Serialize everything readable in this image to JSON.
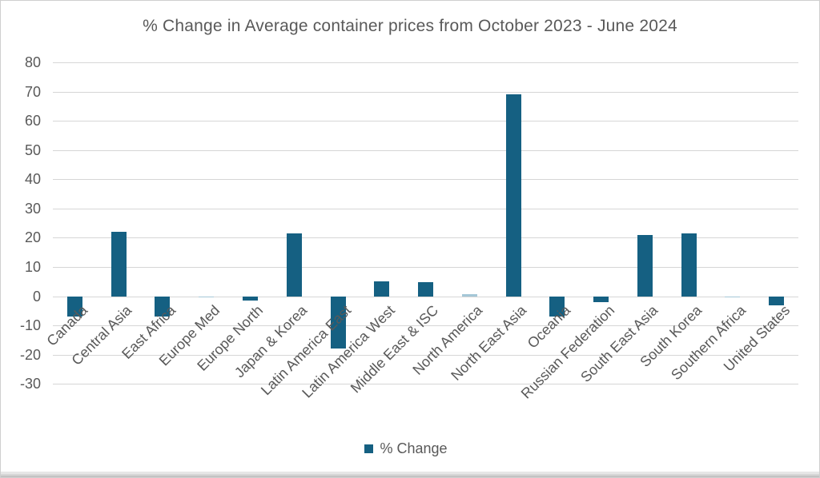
{
  "window": {
    "background": "#ffffff",
    "border_color": "#cfcfcf"
  },
  "chart_data": {
    "type": "bar",
    "title": "% Change in Average container prices from October 2023 - June 2024",
    "categories": [
      "Canada",
      "Central Asia",
      "East Africa",
      "Europe Med",
      "Europe North",
      "Japan & Korea",
      "Latin America East",
      "Latin America West",
      "Middle East & ISC",
      "North America",
      "North East Asia",
      "Oceania",
      "Russian Federation",
      "South East Asia",
      "South Korea",
      "Southern Africa",
      "United States"
    ],
    "series": [
      {
        "name": "% Change",
        "values": [
          -7,
          22,
          -7,
          -0.5,
          -1.5,
          21.5,
          -18,
          5,
          4.7,
          0.6,
          69,
          -7,
          -2,
          21,
          21.5,
          -0.3,
          -3
        ]
      }
    ],
    "xlabel": "",
    "ylabel": "",
    "ylim": [
      -30,
      80
    ],
    "ytick_step": 10,
    "y_ticks": [
      80,
      70,
      60,
      50,
      40,
      30,
      20,
      10,
      0,
      -10,
      -20,
      -30
    ],
    "grid": true,
    "x_label_rotation_deg": -45,
    "legend": {
      "position": "bottom",
      "label": "% Change"
    },
    "colors": {
      "bar": "#156082",
      "bar_small_muted": "#a4c7d7",
      "gridline": "#d6d6d6",
      "text": "#595959"
    }
  }
}
